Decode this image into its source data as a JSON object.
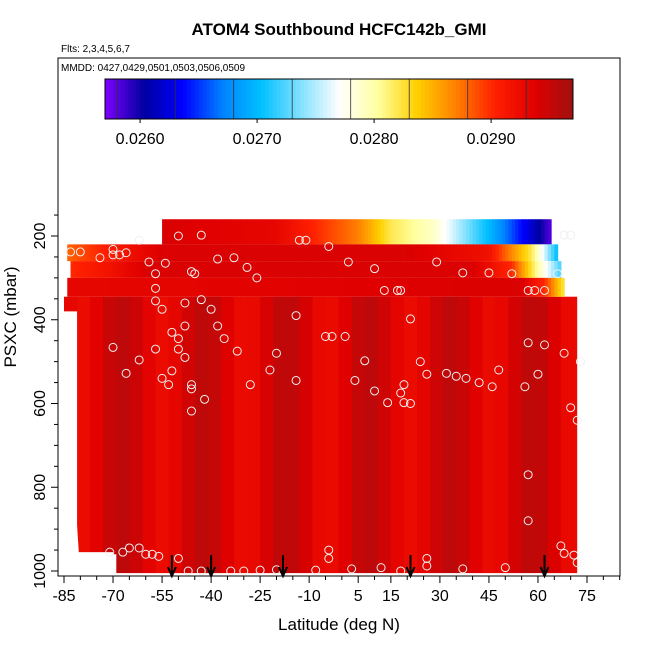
{
  "chart_data": {
    "type": "heatmap",
    "title": "ATOM4 Southbound HCFC142b_GMI",
    "subtitle_flights": "Flts: 2,3,4,5,6,7",
    "subtitle_dates": "MMDD: 0427,0429,0501,0503,0506,0509",
    "xlabel": "Latitude (deg N)",
    "ylabel": "PSXC (mbar)",
    "xlim": [
      -88,
      84
    ],
    "ylim": [
      1010,
      100
    ],
    "x_ticks": [
      -85,
      -70,
      -55,
      -40,
      -25,
      -10,
      5,
      15,
      30,
      45,
      60,
      75
    ],
    "x_tick_labels": [
      "-85",
      "-70",
      "-55",
      "-40",
      "-25",
      "-10",
      "5",
      "15",
      "30",
      "45",
      "60",
      "75"
    ],
    "y_ticks": [
      200,
      400,
      600,
      800,
      1000
    ],
    "y_tick_labels": [
      "200",
      "400",
      "600",
      "800",
      "1000"
    ],
    "colorbar": {
      "min": 0.0257,
      "max": 0.0297,
      "ticks": [
        0.026,
        0.027,
        0.028,
        0.029
      ],
      "tick_labels": [
        "0.0260",
        "0.0270",
        "0.0280",
        "0.0290"
      ],
      "colors": [
        "#7f00ff",
        "#0000a0",
        "#0000ff",
        "#0080ff",
        "#00c0ff",
        "#80e0ff",
        "#ffffff",
        "#ffffa0",
        "#ffd000",
        "#ff8000",
        "#ff2000",
        "#e00000",
        "#a01010"
      ]
    },
    "background_value": 0.0294,
    "upper_features": [
      {
        "lat_range": [
          -55,
          64
        ],
        "p_range": [
          160,
          220
        ],
        "gradient": [
          [
            -55,
            0.0294
          ],
          [
            -20,
            0.0293
          ],
          [
            5,
            0.0287
          ],
          [
            15,
            0.0282
          ],
          [
            28,
            0.0279
          ],
          [
            45,
            0.027
          ],
          [
            58,
            0.0262
          ],
          [
            64,
            0.0258
          ]
        ]
      },
      {
        "lat_range": [
          -84,
          66
        ],
        "p_range": [
          220,
          260
        ],
        "gradient": [
          [
            -84,
            0.0288
          ],
          [
            -70,
            0.0291
          ],
          [
            -55,
            0.0294
          ],
          [
            20,
            0.0294
          ],
          [
            45,
            0.0292
          ],
          [
            58,
            0.0282
          ],
          [
            66,
            0.027
          ]
        ]
      },
      {
        "lat_range": [
          -83,
          67
        ],
        "p_range": [
          260,
          300
        ],
        "gradient": [
          [
            -83,
            0.029
          ],
          [
            -70,
            0.0292
          ],
          [
            -60,
            0.0294
          ],
          [
            40,
            0.0294
          ],
          [
            52,
            0.029
          ],
          [
            60,
            0.028
          ],
          [
            67,
            0.0272
          ]
        ]
      },
      {
        "lat_range": [
          -84,
          68
        ],
        "p_range": [
          300,
          345
        ],
        "gradient": [
          [
            -84,
            0.0293
          ],
          [
            55,
            0.0294
          ],
          [
            62,
            0.029
          ],
          [
            68,
            0.0282
          ]
        ]
      }
    ],
    "profiles_arrows_lat": [
      -52,
      -40,
      -18,
      21,
      62
    ],
    "observations": [
      [
        -83,
        238
      ],
      [
        -80,
        238
      ],
      [
        -74,
        252
      ],
      [
        -70,
        232
      ],
      [
        -70,
        245
      ],
      [
        -68,
        245
      ],
      [
        -66,
        240
      ],
      [
        -62,
        210
      ],
      [
        -59,
        262
      ],
      [
        -57,
        290
      ],
      [
        -54,
        265
      ],
      [
        -50,
        200
      ],
      [
        -46,
        285
      ],
      [
        -45,
        290
      ],
      [
        -43,
        198
      ],
      [
        -38,
        255
      ],
      [
        -33,
        252
      ],
      [
        -29,
        275
      ],
      [
        -26,
        300
      ],
      [
        -13,
        210
      ],
      [
        -11,
        210
      ],
      [
        -4,
        225
      ],
      [
        2,
        262
      ],
      [
        10,
        278
      ],
      [
        13,
        330
      ],
      [
        17,
        330
      ],
      [
        18,
        330
      ],
      [
        29,
        262
      ],
      [
        37,
        288
      ],
      [
        45,
        288
      ],
      [
        52,
        290
      ],
      [
        57,
        330
      ],
      [
        59,
        330
      ],
      [
        62,
        330
      ],
      [
        66,
        290
      ],
      [
        68,
        198
      ],
      [
        70,
        198
      ],
      [
        -57,
        325
      ],
      [
        -48,
        415
      ],
      [
        -48,
        360
      ],
      [
        -43,
        352
      ],
      [
        -38,
        415
      ],
      [
        -55,
        375
      ],
      [
        -57,
        355
      ],
      [
        -52,
        430
      ],
      [
        -50,
        470
      ],
      [
        -48,
        490
      ],
      [
        -46,
        555
      ],
      [
        -42,
        590
      ],
      [
        -36,
        445
      ],
      [
        -32,
        475
      ],
      [
        -28,
        555
      ],
      [
        -22,
        520
      ],
      [
        -20,
        480
      ],
      [
        -14,
        390
      ],
      [
        -14,
        545
      ],
      [
        -5,
        440
      ],
      [
        -3,
        440
      ],
      [
        1,
        440
      ],
      [
        4,
        545
      ],
      [
        7,
        498
      ],
      [
        10,
        570
      ],
      [
        14,
        598
      ],
      [
        18,
        575
      ],
      [
        19,
        555
      ],
      [
        19,
        598
      ],
      [
        21,
        398
      ],
      [
        21,
        600
      ],
      [
        24,
        500
      ],
      [
        26,
        530
      ],
      [
        32,
        528
      ],
      [
        35,
        535
      ],
      [
        38,
        540
      ],
      [
        42,
        550
      ],
      [
        46,
        560
      ],
      [
        48,
        520
      ],
      [
        56,
        560
      ],
      [
        57,
        455
      ],
      [
        60,
        530
      ],
      [
        62,
        460
      ],
      [
        68,
        480
      ],
      [
        70,
        610
      ],
      [
        72,
        640
      ],
      [
        73,
        500
      ],
      [
        -70,
        466
      ],
      [
        -66,
        528
      ],
      [
        -62,
        496
      ],
      [
        -57,
        470
      ],
      [
        -55,
        540
      ],
      [
        -53,
        555
      ],
      [
        -52,
        522
      ],
      [
        -50,
        445
      ],
      [
        -46,
        565
      ],
      [
        -40,
        375
      ],
      [
        -46,
        618
      ],
      [
        -71,
        955
      ],
      [
        -67,
        955
      ],
      [
        -65,
        945
      ],
      [
        -62,
        945
      ],
      [
        -60,
        960
      ],
      [
        -58,
        960
      ],
      [
        -56,
        965
      ],
      [
        -50,
        970
      ],
      [
        -47,
        1000
      ],
      [
        -43,
        1000
      ],
      [
        -34,
        1000
      ],
      [
        -30,
        1000
      ],
      [
        -25,
        998
      ],
      [
        -20,
        997
      ],
      [
        -8,
        998
      ],
      [
        -4,
        950
      ],
      [
        -4,
        970
      ],
      [
        3,
        995
      ],
      [
        12,
        992
      ],
      [
        18,
        1000
      ],
      [
        26,
        970
      ],
      [
        26,
        988
      ],
      [
        37,
        995
      ],
      [
        50,
        992
      ],
      [
        57,
        880
      ],
      [
        57,
        770
      ],
      [
        67,
        940
      ],
      [
        68,
        958
      ],
      [
        71,
        962
      ],
      [
        72,
        980
      ]
    ]
  }
}
